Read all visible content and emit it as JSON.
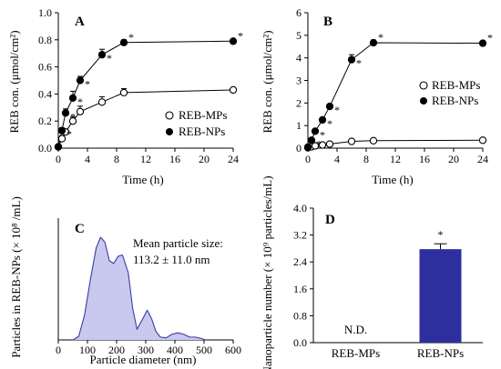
{
  "chart_data": [
    {
      "panel": "A",
      "type": "line",
      "xlabel": "Time (h)",
      "ylabel": "REB con. (μmol/cm²)",
      "xlim": [
        0,
        24
      ],
      "ylim": [
        0,
        1.0
      ],
      "xticks": [
        0,
        4,
        8,
        12,
        16,
        20,
        24
      ],
      "yticks": [
        "0.0",
        "0.2",
        "0.4",
        "0.6",
        "0.8",
        "1.0"
      ],
      "x": [
        0,
        0.5,
        1,
        2,
        3,
        6,
        9,
        24
      ],
      "legend_position": "bottom-right",
      "series": [
        {
          "name": "REB-MPs",
          "marker": "open-circle",
          "values": [
            0.01,
            0.07,
            0.12,
            0.2,
            0.27,
            0.34,
            0.41,
            0.43
          ],
          "errors": [
            0.005,
            0.02,
            0.02,
            0.03,
            0.04,
            0.04,
            0.03,
            0.01
          ]
        },
        {
          "name": "REB-NPs",
          "marker": "filled-circle",
          "values": [
            0.01,
            0.13,
            0.26,
            0.37,
            0.5,
            0.69,
            0.78,
            0.79
          ],
          "errors": [
            0.005,
            0.02,
            0.03,
            0.05,
            0.03,
            0.04,
            0.02,
            0.01
          ]
        }
      ],
      "significance": "*"
    },
    {
      "panel": "B",
      "type": "line",
      "xlabel": "Time (h)",
      "ylabel": "REB con. (μmol/cm²)",
      "xlim": [
        0,
        24
      ],
      "ylim": [
        0,
        6
      ],
      "xticks": [
        0,
        4,
        8,
        12,
        16,
        20,
        24
      ],
      "yticks": [
        "0",
        "1",
        "2",
        "3",
        "4",
        "5",
        "6"
      ],
      "x": [
        0,
        0.5,
        1,
        2,
        3,
        6,
        9,
        24
      ],
      "legend_position": "center-right",
      "series": [
        {
          "name": "REB-MPs",
          "marker": "open-circle",
          "values": [
            0.02,
            0.06,
            0.1,
            0.14,
            0.18,
            0.3,
            0.33,
            0.35
          ],
          "errors": [
            0.01,
            0.02,
            0.03,
            0.04,
            0.05,
            0.05,
            0.05,
            0.05
          ]
        },
        {
          "name": "REB-NPs",
          "marker": "filled-circle",
          "values": [
            0.05,
            0.35,
            0.75,
            1.25,
            1.85,
            3.92,
            4.67,
            4.65
          ],
          "errors": [
            0.02,
            0.05,
            0.05,
            0.06,
            0.1,
            0.22,
            0.12,
            0.08
          ]
        }
      ],
      "significance": "*"
    },
    {
      "panel": "C",
      "type": "area",
      "xlabel": "Particle diameter (nm)",
      "ylabel": "Particles in REB-NPs (× 10⁸ /mL)",
      "xlim": [
        0,
        600
      ],
      "xticks": [
        0,
        100,
        200,
        300,
        400,
        500,
        600
      ],
      "annotation": [
        "Mean particle size:",
        "113.2 ± 11.0 nm"
      ],
      "fill_color": "#c9c9ef",
      "line_color": "#3b3ba6",
      "x": [
        50,
        70,
        90,
        110,
        130,
        145,
        160,
        175,
        190,
        205,
        220,
        240,
        255,
        270,
        290,
        305,
        320,
        335,
        350,
        370,
        390,
        410,
        430,
        450,
        470,
        490,
        505
      ],
      "values": [
        0,
        0.05,
        0.35,
        0.85,
        1.3,
        1.45,
        1.38,
        1.12,
        1.08,
        1.18,
        1.2,
        0.95,
        0.45,
        0.15,
        0.3,
        0.42,
        0.3,
        0.12,
        0.04,
        0.03,
        0.08,
        0.1,
        0.08,
        0.04,
        0.04,
        0.02,
        0
      ]
    },
    {
      "panel": "D",
      "type": "bar",
      "ylabel": "Nanoparticle number (× 10⁹ particles/mL)",
      "ylim": [
        0,
        4.0
      ],
      "yticks": [
        "0.0",
        "0.8",
        "1.6",
        "2.4",
        "3.2",
        "4.0"
      ],
      "categories": [
        "REB-MPs",
        "REB-NPs"
      ],
      "values": [
        null,
        2.78
      ],
      "errors": [
        null,
        0.16
      ],
      "bar_labels": [
        "N.D.",
        "*"
      ],
      "bar_color": "#2e2f9f"
    }
  ]
}
